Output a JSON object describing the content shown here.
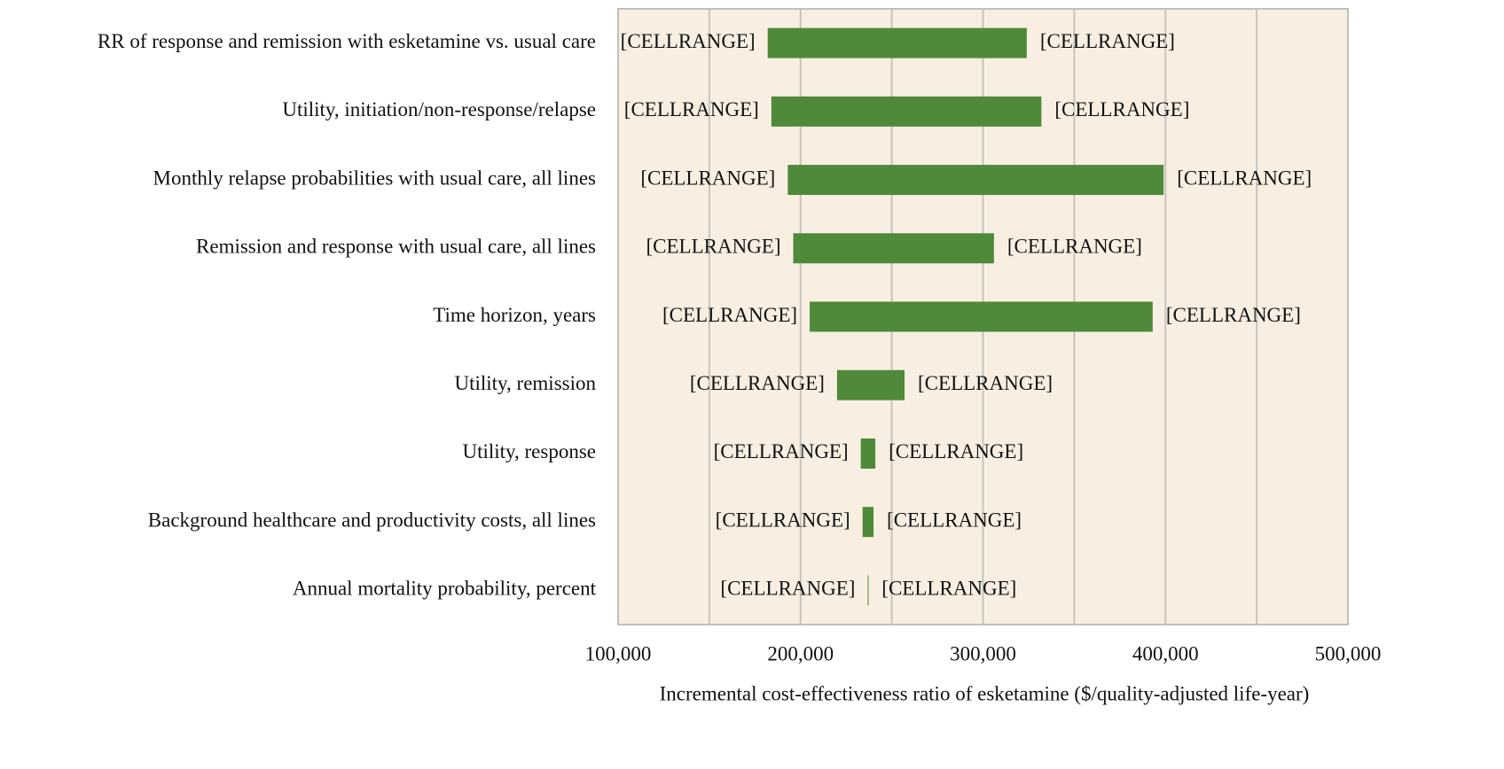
{
  "chart_data": {
    "type": "tornado",
    "x_label": "Incremental cost-effectiveness ratio of esketamine ($/quality-adjusted life-year)",
    "categories": [
      "RR of response and remission with esketamine vs. usual care",
      "Utility, initiation/non-response/relapse",
      "Monthly relapse probabilities with usual care, all lines",
      "Remission and response with usual care, all lines",
      "Time horizon, years",
      "Utility, remission",
      "Utility, response",
      "Background healthcare and productivity costs, all lines",
      "Annual mortality probability, percent"
    ],
    "low": [
      182000,
      184000,
      193000,
      196000,
      205000,
      220000,
      233000,
      234000,
      236800
    ],
    "high": [
      324000,
      332000,
      399000,
      306000,
      393000,
      257000,
      241000,
      240000,
      237200
    ],
    "low_labels": [
      "[CELLRANGE]",
      "[CELLRANGE]",
      "[CELLRANGE]",
      "[CELLRANGE]",
      "[CELLRANGE]",
      "[CELLRANGE]",
      "[CELLRANGE]",
      "[CELLRANGE]",
      "[CELLRANGE]"
    ],
    "high_labels": [
      "[CELLRANGE]",
      "[CELLRANGE]",
      "[CELLRANGE]",
      "[CELLRANGE]",
      "[CELLRANGE]",
      "[CELLRANGE]",
      "[CELLRANGE]",
      "[CELLRANGE]",
      "[CELLRANGE]"
    ],
    "color": "#4e8a3a",
    "plot_background": "#f8efe2",
    "xlim": [
      100000,
      500000
    ],
    "xticks": [
      {
        "value": 100000,
        "label": "100,000"
      },
      {
        "value": 200000,
        "label": "200,000"
      },
      {
        "value": 300000,
        "label": "300,000"
      },
      {
        "value": 400000,
        "label": "400,000"
      },
      {
        "value": 500000,
        "label": "500,000"
      }
    ],
    "xgrid": [
      150000,
      200000,
      250000,
      300000,
      350000,
      400000,
      450000
    ],
    "grid": true
  }
}
